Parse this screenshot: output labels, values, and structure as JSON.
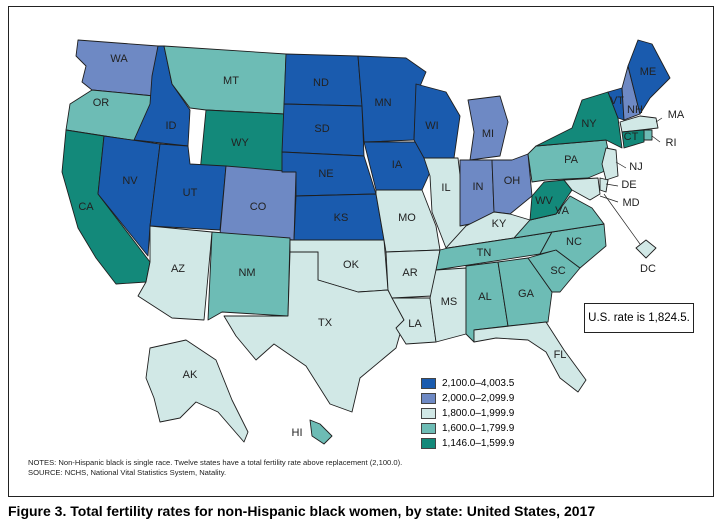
{
  "caption": "Figure 3. Total fertility rates for non-Hispanic black women, by state: United States, 2017",
  "us_rate": "U.S. rate is 1,824.5.",
  "notes": "NOTES: Non-Hispanic black is single race. Twelve states have a total fertility rate above replacement (2,100.0).",
  "source": "SOURCE: NCHS, National Vital Statistics System, Natality.",
  "colors": {
    "c1": "#1a5bae",
    "c2": "#6e89c4",
    "c3": "#d1e8e6",
    "c4": "#6dbcb5",
    "c5": "#13897a"
  },
  "legend": [
    {
      "label": "2,100.0–4,003.5",
      "color": "#1a5bae"
    },
    {
      "label": "2,000.0–2,099.9",
      "color": "#6e89c4"
    },
    {
      "label": "1,800.0–1,999.9",
      "color": "#d1e8e6"
    },
    {
      "label": "1,600.0–1,799.9",
      "color": "#6dbcb5"
    },
    {
      "label": "1,146.0–1,599.9",
      "color": "#13897a"
    }
  ],
  "states": [
    {
      "code": "WA",
      "cls": "c2"
    },
    {
      "code": "OR",
      "cls": "c4"
    },
    {
      "code": "CA",
      "cls": "c5"
    },
    {
      "code": "ID",
      "cls": "c1"
    },
    {
      "code": "NV",
      "cls": "c1"
    },
    {
      "code": "MT",
      "cls": "c4"
    },
    {
      "code": "WY",
      "cls": "c5"
    },
    {
      "code": "UT",
      "cls": "c1"
    },
    {
      "code": "AZ",
      "cls": "c3"
    },
    {
      "code": "CO",
      "cls": "c2"
    },
    {
      "code": "NM",
      "cls": "c4"
    },
    {
      "code": "ND",
      "cls": "c1"
    },
    {
      "code": "SD",
      "cls": "c1"
    },
    {
      "code": "NE",
      "cls": "c1"
    },
    {
      "code": "KS",
      "cls": "c1"
    },
    {
      "code": "OK",
      "cls": "c3"
    },
    {
      "code": "TX",
      "cls": "c3"
    },
    {
      "code": "MN",
      "cls": "c1"
    },
    {
      "code": "IA",
      "cls": "c1"
    },
    {
      "code": "MO",
      "cls": "c3"
    },
    {
      "code": "AR",
      "cls": "c3"
    },
    {
      "code": "LA",
      "cls": "c3"
    },
    {
      "code": "WI",
      "cls": "c1"
    },
    {
      "code": "IL",
      "cls": "c3"
    },
    {
      "code": "MI",
      "cls": "c2"
    },
    {
      "code": "IN",
      "cls": "c2"
    },
    {
      "code": "OH",
      "cls": "c2"
    },
    {
      "code": "KY",
      "cls": "c3"
    },
    {
      "code": "TN",
      "cls": "c4"
    },
    {
      "code": "MS",
      "cls": "c3"
    },
    {
      "code": "AL",
      "cls": "c4"
    },
    {
      "code": "GA",
      "cls": "c4"
    },
    {
      "code": "FL",
      "cls": "c3"
    },
    {
      "code": "SC",
      "cls": "c4"
    },
    {
      "code": "NC",
      "cls": "c4"
    },
    {
      "code": "VA",
      "cls": "c4"
    },
    {
      "code": "WV",
      "cls": "c5"
    },
    {
      "code": "PA",
      "cls": "c4"
    },
    {
      "code": "NY",
      "cls": "c5"
    },
    {
      "code": "VT",
      "cls": "c1"
    },
    {
      "code": "NH",
      "cls": "c2"
    },
    {
      "code": "ME",
      "cls": "c1"
    },
    {
      "code": "MA",
      "cls": "c3"
    },
    {
      "code": "RI",
      "cls": "c4"
    },
    {
      "code": "CT",
      "cls": "c5"
    },
    {
      "code": "NJ",
      "cls": "c3"
    },
    {
      "code": "DE",
      "cls": "c3"
    },
    {
      "code": "MD",
      "cls": "c3"
    },
    {
      "code": "DC",
      "cls": "c3"
    },
    {
      "code": "AK",
      "cls": "c3"
    },
    {
      "code": "HI",
      "cls": "c4"
    }
  ]
}
